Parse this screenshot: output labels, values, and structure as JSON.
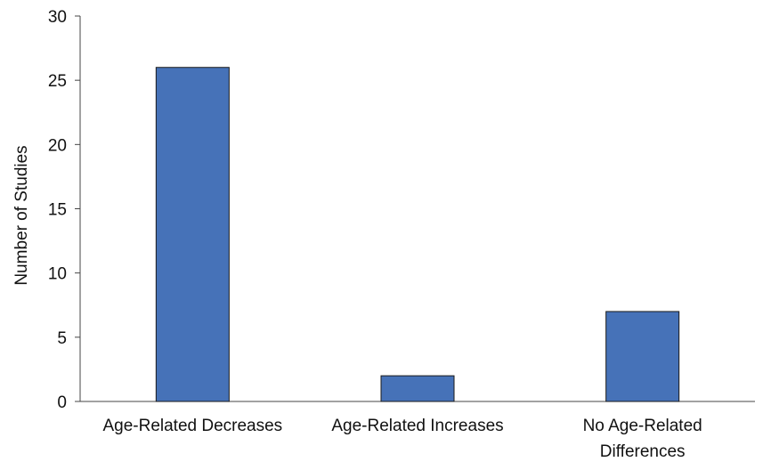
{
  "chart_data": {
    "type": "bar",
    "categories": [
      [
        "Age-Related Decreases"
      ],
      [
        "Age-Related Increases"
      ],
      [
        "No Age-Related",
        "Differences"
      ]
    ],
    "values": [
      26,
      2,
      7
    ],
    "title": "",
    "xlabel": "",
    "ylabel": "Number of Studies",
    "ylim": [
      0,
      30
    ],
    "yticks": [
      0,
      5,
      10,
      15,
      20,
      25,
      30
    ],
    "grid": false,
    "legend": "none",
    "bar_color": "#4672B8",
    "bar_edge_color": "#1a1a1a",
    "axis_color": "#444444"
  }
}
